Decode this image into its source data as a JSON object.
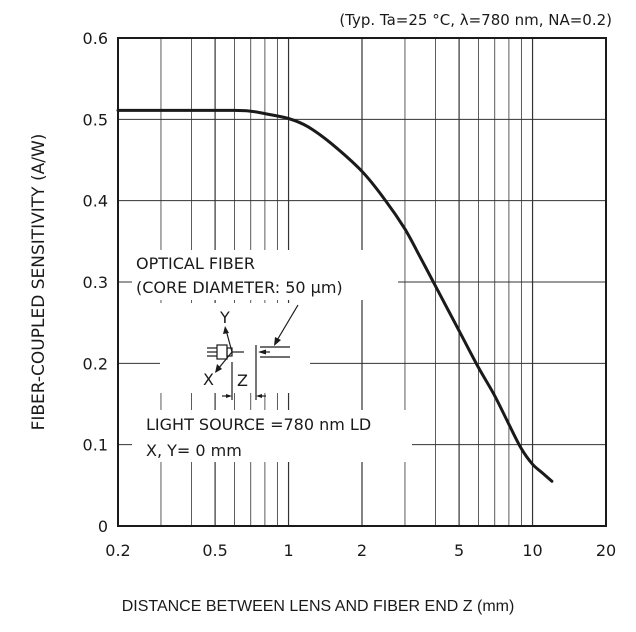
{
  "condition_note": "(Typ. Ta=25 °C, λ=780 nm,  NA=0.2)",
  "chart_data": {
    "type": "line",
    "title": "",
    "xlabel": "DISTANCE BETWEEN LENS AND FIBER END Z (mm)",
    "ylabel": "FIBER-COUPLED SENSITIVITY (A/W)",
    "x_scale": "log",
    "xlim": [
      0.2,
      20
    ],
    "ylim": [
      0,
      0.6
    ],
    "x_ticks": [
      "0.2",
      "0.5",
      "1",
      "2",
      "5",
      "10",
      "20"
    ],
    "x_tick_values": [
      0.2,
      0.5,
      1,
      2,
      5,
      10,
      20
    ],
    "y_ticks": [
      "0",
      "0.1",
      "0.2",
      "0.3",
      "0.4",
      "0.5",
      "0.6"
    ],
    "y_tick_values": [
      0,
      0.1,
      0.2,
      0.3,
      0.4,
      0.5,
      0.6
    ],
    "grid": true,
    "series": [
      {
        "color": "#1a1a1a",
        "x": [
          0.2,
          0.4,
          0.6,
          0.7,
          0.8,
          1.0,
          1.2,
          1.5,
          2.0,
          2.5,
          3.0,
          3.5,
          4.0,
          5.0,
          6.0,
          7.0,
          8.0,
          9.0,
          10.0,
          11.0,
          12.0
        ],
        "y": [
          0.511,
          0.511,
          0.511,
          0.51,
          0.507,
          0.501,
          0.491,
          0.47,
          0.436,
          0.4,
          0.365,
          0.328,
          0.295,
          0.24,
          0.195,
          0.16,
          0.125,
          0.095,
          0.076,
          0.065,
          0.055
        ]
      }
    ]
  },
  "annotations": {
    "fiber_label": "OPTICAL FIBER",
    "core_label": "(CORE DIAMETER: 50 μm)",
    "axis_y": "Y",
    "axis_x": "X",
    "axis_z": "Z",
    "source_label": "LIGHT SOURCE =780 nm LD",
    "xy_label": "X, Y= 0 mm"
  }
}
